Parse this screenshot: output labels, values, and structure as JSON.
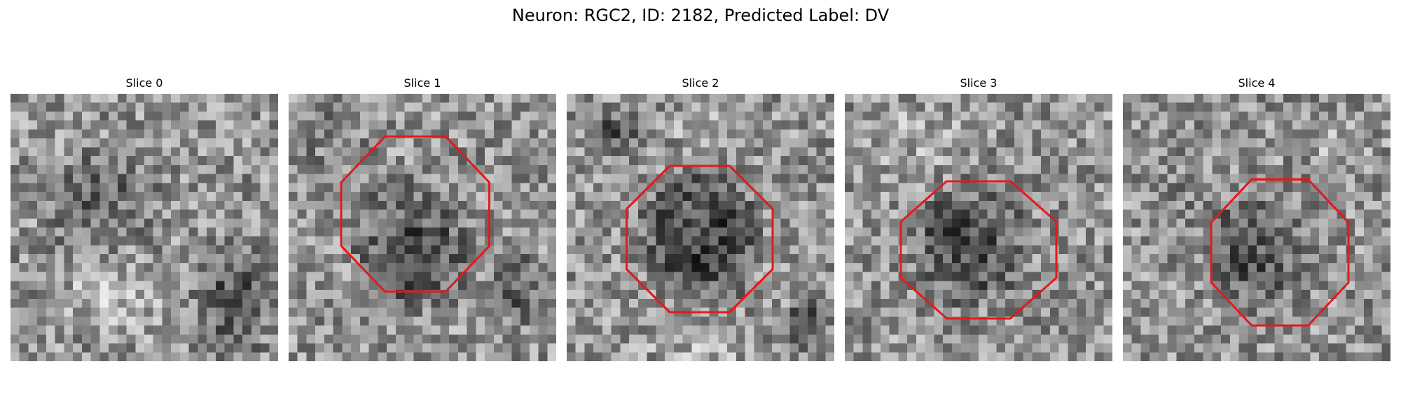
{
  "figure": {
    "title": "Neuron: RGC2, ID: 2182, Predicted Label: DV",
    "outline_color": "#e31a1c",
    "colormap": "grayscale"
  },
  "slices": [
    {
      "title": "Slice 0",
      "has_outline": false
    },
    {
      "title": "Slice 1",
      "has_outline": true
    },
    {
      "title": "Slice 2",
      "has_outline": true
    },
    {
      "title": "Slice 3",
      "has_outline": true
    },
    {
      "title": "Slice 4",
      "has_outline": true
    }
  ]
}
